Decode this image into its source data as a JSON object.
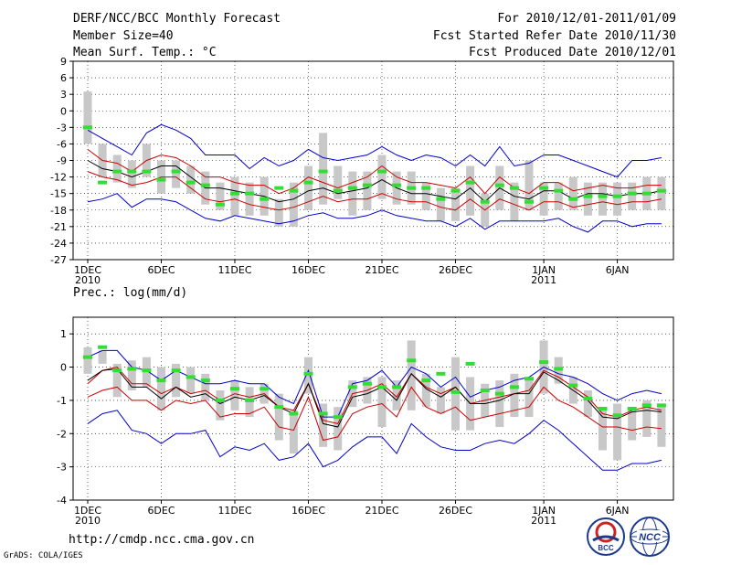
{
  "header": {
    "title": "DERF/NCC/BCC Monthly Forecast",
    "member": "Member Size=40",
    "variable": "Mean Surf. Temp.: °C",
    "period": "For 2010/12/01-2011/01/09",
    "started": "Fcst Started Refer Date 2010/11/30",
    "produced": "Fcst Produced Date 2010/12/01"
  },
  "precip_label": "Prec.: log(mm/d)",
  "footer": {
    "url": "http://cmdp.ncc.cma.gov.cn",
    "grads": "GrADS: COLA/IGES",
    "logo1": "BCC",
    "logo2": "NCC"
  },
  "colors": {
    "mean": "#000000",
    "spread": "#cc0000",
    "extreme": "#0000cc",
    "box": "#c8c8c8",
    "obs": "#33dd33"
  },
  "chart_data": [
    {
      "type": "line",
      "title": "Mean Surf. Temp.: °C",
      "ylim": [
        -27,
        9
      ],
      "yticks": [
        9,
        6,
        3,
        0,
        -3,
        -6,
        -9,
        -12,
        -15,
        -18,
        -21,
        -24,
        -27
      ],
      "xticks": [
        {
          "day": 1,
          "label": "1DEC",
          "sub": "2010"
        },
        {
          "day": 6,
          "label": "6DEC",
          "sub": ""
        },
        {
          "day": 11,
          "label": "11DEC",
          "sub": ""
        },
        {
          "day": 16,
          "label": "16DEC",
          "sub": ""
        },
        {
          "day": 21,
          "label": "21DEC",
          "sub": ""
        },
        {
          "day": 26,
          "label": "26DEC",
          "sub": ""
        },
        {
          "day": 32,
          "label": "1JAN",
          "sub": "2011"
        },
        {
          "day": 37,
          "label": "6JAN",
          "sub": ""
        }
      ],
      "x": [
        1,
        2,
        3,
        4,
        5,
        6,
        7,
        8,
        9,
        10,
        11,
        12,
        13,
        14,
        15,
        16,
        17,
        18,
        19,
        20,
        21,
        22,
        23,
        24,
        25,
        26,
        27,
        28,
        29,
        30,
        31,
        32,
        33,
        34,
        35,
        36,
        37,
        38,
        39,
        40
      ],
      "series": [
        {
          "name": "upper-extreme",
          "values": [
            -3.5,
            -5,
            -6.5,
            -8,
            -4,
            -2.5,
            -3.5,
            -5,
            -8,
            -8,
            -8,
            -10.5,
            -8.5,
            -10,
            -9,
            -7,
            -8.5,
            -9,
            -8.5,
            -8,
            -6.5,
            -8,
            -9,
            -8,
            -8.5,
            -10,
            -8,
            -10,
            -6.5,
            -10,
            -9.5,
            -8,
            -8,
            -9,
            -10,
            -11,
            -12,
            -9,
            -9,
            -8.5
          ]
        },
        {
          "name": "upper-spread",
          "values": [
            -7,
            -9,
            -9.5,
            -11,
            -9,
            -8,
            -8.5,
            -10,
            -12,
            -12,
            -13,
            -13.5,
            -13.5,
            -15,
            -14,
            -12,
            -13,
            -14,
            -13,
            -12,
            -10,
            -12,
            -13,
            -13,
            -13.5,
            -14,
            -12,
            -15,
            -12,
            -14,
            -15,
            -13,
            -13,
            -14.5,
            -14,
            -13.5,
            -14,
            -14,
            -13.5,
            -13.5
          ]
        },
        {
          "name": "mean",
          "values": [
            -9,
            -10.5,
            -11,
            -12,
            -11,
            -10,
            -10,
            -12,
            -14,
            -14,
            -14.5,
            -15,
            -15.5,
            -16.5,
            -16,
            -14.5,
            -14,
            -15,
            -14.5,
            -14,
            -12.5,
            -14,
            -15,
            -15,
            -15.5,
            -16,
            -14,
            -16.5,
            -14,
            -15.5,
            -16,
            -14.5,
            -14.5,
            -16,
            -15,
            -15,
            -15.5,
            -15,
            -15,
            -14.5
          ]
        },
        {
          "name": "lower-spread",
          "values": [
            -11,
            -12,
            -12.5,
            -13.5,
            -13,
            -12,
            -12,
            -14,
            -16,
            -16.5,
            -16,
            -17,
            -17.5,
            -18,
            -17.5,
            -16.5,
            -15.5,
            -16.5,
            -16,
            -16,
            -15,
            -16,
            -16.5,
            -16.5,
            -17.5,
            -18,
            -16,
            -18,
            -16,
            -17,
            -18,
            -16.5,
            -16.5,
            -17.5,
            -17,
            -16.5,
            -17,
            -16.5,
            -16.5,
            -16
          ]
        },
        {
          "name": "lower-extreme",
          "values": [
            -16.5,
            -16,
            -15,
            -17.5,
            -16,
            -16,
            -16.5,
            -18,
            -19.5,
            -20,
            -19,
            -19.5,
            -20,
            -20.5,
            -20,
            -19,
            -18.5,
            -19.5,
            -19.5,
            -19,
            -18,
            -19,
            -19.5,
            -20,
            -20,
            -21,
            -19.5,
            -21.5,
            -20,
            -20,
            -20,
            -20,
            -19.5,
            -21,
            -22,
            -20,
            -20,
            -21,
            -20.5,
            -20.5
          ]
        }
      ],
      "boxes": [
        [
          -6,
          3.5
        ],
        [
          -12,
          -6
        ],
        [
          -13,
          -8
        ],
        [
          -14,
          -9
        ],
        [
          -12,
          -6
        ],
        [
          -15,
          -9
        ],
        [
          -14,
          -9
        ],
        [
          -15,
          -10
        ],
        [
          -17,
          -11
        ],
        [
          -18,
          -13
        ],
        [
          -19,
          -12
        ],
        [
          -19,
          -13
        ],
        [
          -19,
          -12
        ],
        [
          -21,
          -16
        ],
        [
          -21,
          -13
        ],
        [
          -18,
          -10
        ],
        [
          -17,
          -4
        ],
        [
          -16,
          -10
        ],
        [
          -19,
          -11
        ],
        [
          -18,
          -11
        ],
        [
          -16,
          -8
        ],
        [
          -17,
          -11
        ],
        [
          -17,
          -11
        ],
        [
          -18,
          -13
        ],
        [
          -20,
          -14
        ],
        [
          -20,
          -14
        ],
        [
          -19,
          -10
        ],
        [
          -21,
          -15
        ],
        [
          -18,
          -10
        ],
        [
          -20,
          -13
        ],
        [
          -18,
          -9
        ],
        [
          -19,
          -13
        ],
        [
          -18,
          -13
        ],
        [
          -18,
          -12
        ],
        [
          -19,
          -13
        ],
        [
          -19,
          -13
        ],
        [
          -19,
          -13
        ],
        [
          -18,
          -13
        ],
        [
          -18,
          -12
        ],
        [
          -18,
          -12
        ]
      ],
      "obs": [
        -3,
        -13,
        -11,
        -11,
        -11,
        -12.5,
        -11,
        -13,
        -13.5,
        -17,
        -15,
        -15,
        -16,
        -14,
        -14.5,
        -13,
        -11,
        -14.5,
        -14,
        -13.5,
        -11,
        -13.5,
        -14,
        -14,
        -16,
        -14.5,
        -13,
        -16.5,
        -13.5,
        -14,
        -16.5,
        -14,
        -14.5,
        -16,
        -15.5,
        -15.5,
        -15.5,
        -15,
        -15,
        -14.5
      ]
    },
    {
      "type": "line",
      "title": "Prec.: log(mm/d)",
      "ylim": [
        -4,
        1.5
      ],
      "yticks": [
        1,
        0,
        -1,
        -2,
        -3,
        -4
      ],
      "xticks": [
        {
          "day": 1,
          "label": "1DEC",
          "sub": "2010"
        },
        {
          "day": 6,
          "label": "6DEC",
          "sub": ""
        },
        {
          "day": 11,
          "label": "11DEC",
          "sub": ""
        },
        {
          "day": 16,
          "label": "16DEC",
          "sub": ""
        },
        {
          "day": 21,
          "label": "21DEC",
          "sub": ""
        },
        {
          "day": 26,
          "label": "26DEC",
          "sub": ""
        },
        {
          "day": 32,
          "label": "1JAN",
          "sub": "2011"
        },
        {
          "day": 37,
          "label": "6JAN",
          "sub": ""
        }
      ],
      "x": [
        1,
        2,
        3,
        4,
        5,
        6,
        7,
        8,
        9,
        10,
        11,
        12,
        13,
        14,
        15,
        16,
        17,
        18,
        19,
        20,
        21,
        22,
        23,
        24,
        25,
        26,
        27,
        28,
        29,
        30,
        31,
        32,
        33,
        34,
        35,
        36,
        37,
        38,
        39,
        40
      ],
      "series": [
        {
          "name": "upper-extreme",
          "values": [
            0.3,
            0.5,
            0.5,
            0,
            -0.1,
            -0.4,
            -0.1,
            -0.3,
            -0.5,
            -0.5,
            -0.4,
            -0.5,
            -0.5,
            -0.9,
            -1.1,
            -0.1,
            -1.5,
            -1.5,
            -0.5,
            -0.4,
            -0.1,
            -0.6,
            0,
            -0.2,
            -0.6,
            -0.3,
            -0.9,
            -0.7,
            -0.6,
            -0.4,
            -0.3,
            0,
            -0.2,
            -0.3,
            -0.5,
            -0.8,
            -1,
            -0.8,
            -0.7,
            -0.8
          ]
        },
        {
          "name": "upper-spread",
          "values": [
            -0.5,
            -0.1,
            0,
            -0.5,
            -0.5,
            -0.8,
            -0.6,
            -0.8,
            -0.7,
            -1,
            -0.8,
            -0.9,
            -0.8,
            -1.2,
            -1.3,
            -0.5,
            -1.6,
            -1.7,
            -0.8,
            -0.7,
            -0.5,
            -0.9,
            -0.2,
            -0.6,
            -0.8,
            -0.6,
            -1.1,
            -1,
            -0.9,
            -0.8,
            -0.7,
            -0.1,
            -0.3,
            -0.6,
            -0.9,
            -1.4,
            -1.5,
            -1.3,
            -1.2,
            -1.3
          ]
        },
        {
          "name": "mean",
          "values": [
            -0.4,
            -0.1,
            -0.05,
            -0.6,
            -0.6,
            -0.95,
            -0.6,
            -0.9,
            -0.8,
            -1.1,
            -0.9,
            -1,
            -0.85,
            -1.2,
            -1.4,
            -0.5,
            -1.7,
            -1.8,
            -0.9,
            -0.8,
            -0.6,
            -1,
            -0.2,
            -0.65,
            -0.9,
            -0.6,
            -1.1,
            -1.1,
            -1,
            -0.8,
            -0.8,
            -0.15,
            -0.4,
            -0.7,
            -1,
            -1.5,
            -1.55,
            -1.35,
            -1.3,
            -1.35
          ]
        },
        {
          "name": "lower-spread",
          "values": [
            -0.9,
            -0.7,
            -0.6,
            -1,
            -1,
            -1.3,
            -1,
            -1.1,
            -1,
            -1.5,
            -1.4,
            -1.4,
            -1.2,
            -1.8,
            -1.9,
            -0.9,
            -2.2,
            -2.1,
            -1.4,
            -1.2,
            -1.1,
            -1.5,
            -0.6,
            -1.2,
            -1.4,
            -1.2,
            -1.6,
            -1.5,
            -1.4,
            -1.3,
            -1.2,
            -0.6,
            -1,
            -1.2,
            -1.5,
            -1.8,
            -1.8,
            -1.9,
            -1.8,
            -1.85
          ]
        },
        {
          "name": "lower-extreme",
          "values": [
            -1.7,
            -1.4,
            -1.3,
            -1.9,
            -2,
            -2.3,
            -2,
            -2,
            -1.9,
            -2.7,
            -2.4,
            -2.5,
            -2.3,
            -2.8,
            -2.7,
            -2.3,
            -3,
            -2.8,
            -2.4,
            -2.1,
            -2.1,
            -2.6,
            -1.7,
            -2.1,
            -2.4,
            -2.5,
            -2.5,
            -2.3,
            -2.2,
            -2.3,
            -2,
            -1.6,
            -1.9,
            -2.3,
            -2.7,
            -3.1,
            -3.1,
            -2.9,
            -2.9,
            -2.8
          ]
        }
      ],
      "boxes": [
        [
          -0.2,
          0.6
        ],
        [
          0.1,
          0.5
        ],
        [
          -0.9,
          0.1
        ],
        [
          -0.7,
          0.2
        ],
        [
          -0.6,
          0.3
        ],
        [
          -1.3,
          0
        ],
        [
          -0.9,
          0.1
        ],
        [
          -0.8,
          0
        ],
        [
          -1,
          -0.2
        ],
        [
          -1.6,
          -0.7
        ],
        [
          -1.3,
          -0.4
        ],
        [
          -1.5,
          -0.6
        ],
        [
          -1.1,
          -0.5
        ],
        [
          -2.2,
          -0.8
        ],
        [
          -2.6,
          -1.3
        ],
        [
          -0.8,
          0.3
        ],
        [
          -2.4,
          -1.1
        ],
        [
          -2.5,
          -1.2
        ],
        [
          -1.2,
          -0.4
        ],
        [
          -1.1,
          -0.3
        ],
        [
          -1.8,
          -0.3
        ],
        [
          -1.3,
          -0.4
        ],
        [
          -1.3,
          0.8
        ],
        [
          -1.2,
          -0.2
        ],
        [
          -1.4,
          -0.6
        ],
        [
          -1.9,
          0.3
        ],
        [
          -1.9,
          -0.3
        ],
        [
          -1.5,
          -0.5
        ],
        [
          -1.8,
          -0.4
        ],
        [
          -1.5,
          -0.2
        ],
        [
          -1.5,
          -0.3
        ],
        [
          -0.8,
          0.8
        ],
        [
          -0.5,
          0.3
        ],
        [
          -1.1,
          -0.3
        ],
        [
          -1.5,
          -0.7
        ],
        [
          -2.5,
          -1.2
        ],
        [
          -2.8,
          -1.1
        ],
        [
          -2.2,
          -1.3
        ],
        [
          -2.1,
          -1
        ],
        [
          -2.4,
          -1.1
        ]
      ],
      "obs": [
        0.3,
        0.6,
        -0.1,
        -0.05,
        -0.1,
        -0.4,
        -0.1,
        -0.3,
        -0.4,
        -1,
        -0.65,
        -1,
        -0.65,
        -1.2,
        -1.4,
        -0.2,
        -1.4,
        -1.5,
        -0.6,
        -0.5,
        -0.6,
        -0.6,
        0.2,
        -0.4,
        -0.2,
        -0.75,
        0.1,
        -0.7,
        -0.8,
        -0.6,
        -0.35,
        0.15,
        -0.05,
        -0.55,
        -0.95,
        -1.25,
        -1.45,
        -1.25,
        -1.15,
        -1.15
      ]
    }
  ]
}
